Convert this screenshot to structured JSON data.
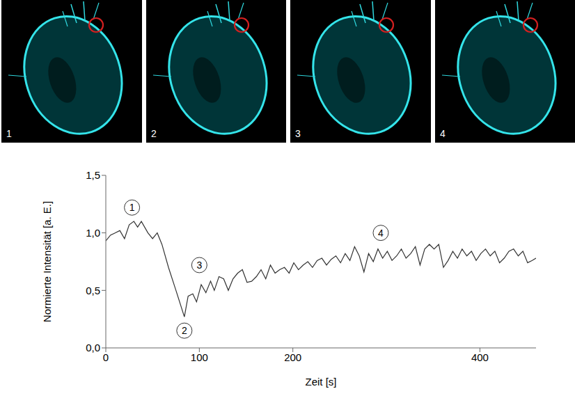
{
  "image_panels": [
    "1",
    "2",
    "3",
    "4"
  ],
  "chart_data": {
    "type": "line",
    "x_label": "Zeit [s]",
    "y_label": "Normierte Intensität [a. E.]",
    "x": [
      0,
      5,
      10,
      15,
      20,
      25,
      30,
      34,
      38,
      45,
      50,
      55,
      60,
      67,
      75,
      84,
      88,
      93,
      97,
      102,
      107,
      112,
      116,
      121,
      126,
      131,
      136,
      141,
      146,
      151,
      156,
      161,
      166,
      171,
      176,
      181,
      186,
      191,
      196,
      201,
      206,
      211,
      216,
      221,
      226,
      231,
      236,
      241,
      246,
      251,
      256,
      261,
      266,
      271,
      276,
      281,
      286,
      291,
      296,
      301,
      306,
      311,
      316,
      321,
      326,
      331,
      336,
      341,
      346,
      351,
      356,
      361,
      366,
      371,
      376,
      381,
      386,
      391,
      396,
      401,
      406,
      411,
      416,
      421,
      426,
      431,
      436,
      441,
      446,
      451,
      456,
      460
    ],
    "values": [
      0.93,
      0.98,
      1.0,
      1.02,
      0.95,
      1.07,
      1.1,
      1.05,
      1.1,
      1.0,
      0.95,
      1.0,
      0.9,
      0.7,
      0.5,
      0.27,
      0.45,
      0.47,
      0.4,
      0.55,
      0.48,
      0.58,
      0.5,
      0.62,
      0.6,
      0.5,
      0.6,
      0.65,
      0.68,
      0.57,
      0.58,
      0.62,
      0.68,
      0.6,
      0.72,
      0.65,
      0.68,
      0.7,
      0.65,
      0.74,
      0.68,
      0.72,
      0.75,
      0.7,
      0.76,
      0.78,
      0.72,
      0.77,
      0.8,
      0.74,
      0.82,
      0.76,
      0.88,
      0.8,
      0.66,
      0.82,
      0.75,
      0.86,
      0.78,
      0.84,
      0.76,
      0.8,
      0.86,
      0.78,
      0.82,
      0.88,
      0.72,
      0.86,
      0.9,
      0.86,
      0.9,
      0.7,
      0.76,
      0.84,
      0.78,
      0.86,
      0.8,
      0.84,
      0.76,
      0.82,
      0.86,
      0.8,
      0.84,
      0.74,
      0.78,
      0.84,
      0.86,
      0.8,
      0.84,
      0.74,
      0.76,
      0.78
    ],
    "color": "#333333",
    "xlim": [
      0,
      460
    ],
    "xticks": [
      0,
      100,
      200,
      400
    ],
    "ylim": [
      0,
      1.5
    ],
    "yticks": [
      {
        "value": 0,
        "label": "0,0"
      },
      {
        "value": 0.5,
        "label": "0,5"
      },
      {
        "value": 1.0,
        "label": "1,0"
      },
      {
        "value": 1.5,
        "label": "1,5"
      }
    ],
    "grid": false,
    "annotations": [
      {
        "text": "1",
        "x": 28,
        "y": 1.22
      },
      {
        "text": "2",
        "x": 84,
        "y": 0.15
      },
      {
        "text": "3",
        "x": 100,
        "y": 0.72
      },
      {
        "text": "4",
        "x": 294,
        "y": 1.0
      }
    ]
  }
}
